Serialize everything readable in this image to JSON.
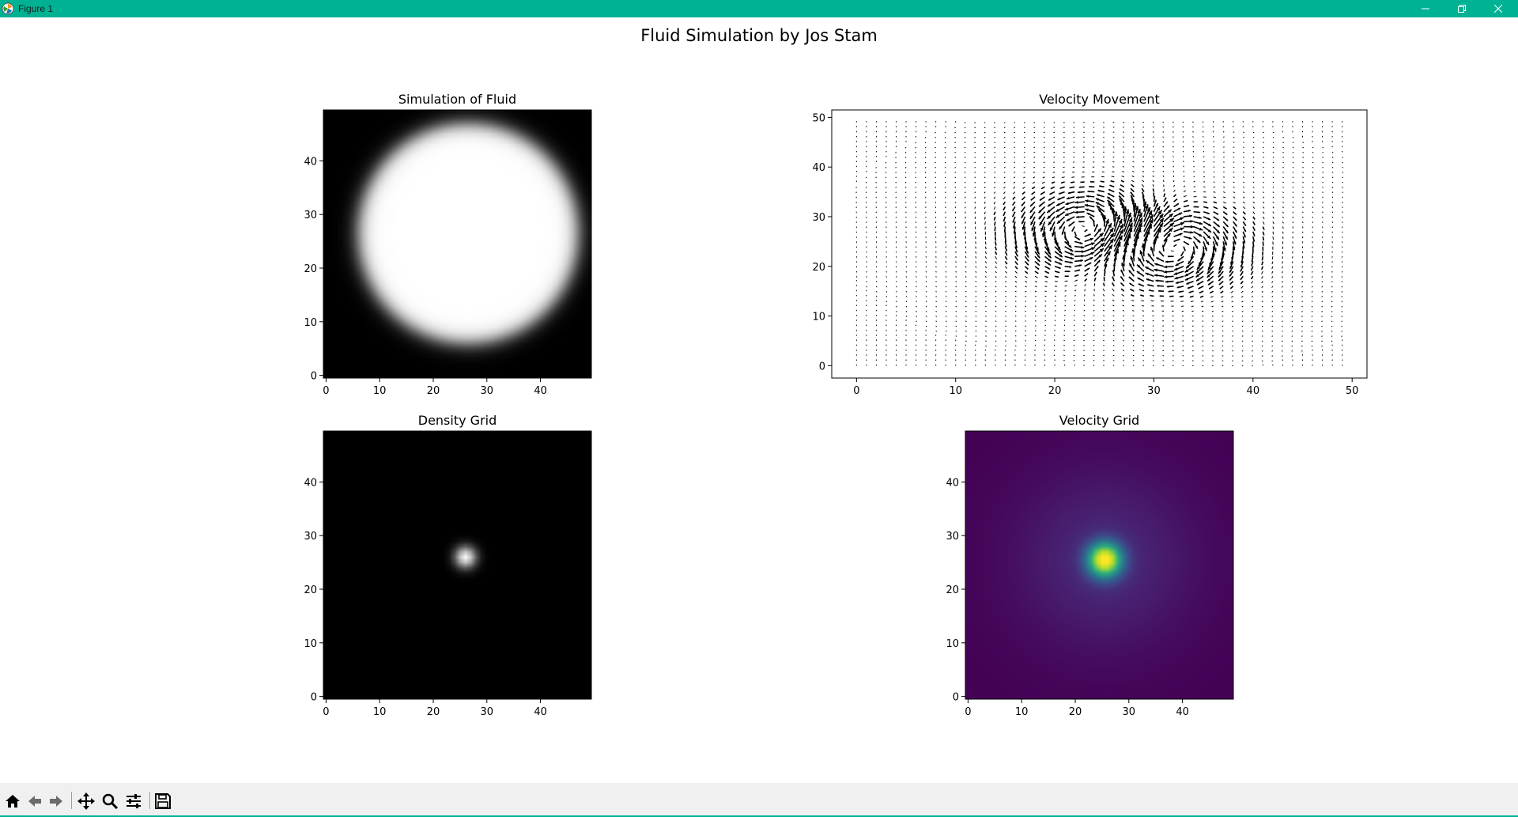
{
  "window": {
    "title": "Figure 1",
    "accent_color": "#00b294",
    "controls": [
      "minimize-icon",
      "restore-icon",
      "close-icon"
    ]
  },
  "figure": {
    "suptitle": "Fluid Simulation by Jos Stam"
  },
  "chart_data": [
    {
      "type": "heatmap",
      "title": "Simulation of Fluid",
      "colormap": "gray",
      "grid_size": [
        50,
        50
      ],
      "xlim": [
        -0.5,
        49.5
      ],
      "ylim": [
        -0.5,
        49.5
      ],
      "xticks": [
        0,
        10,
        20,
        30,
        40
      ],
      "yticks": [
        0,
        10,
        20,
        30,
        40
      ],
      "feature": {
        "shape": "ellipse",
        "center": [
          26.5,
          26.5
        ],
        "radius_x": 20.5,
        "radius_y": 20.5,
        "value_inside": 1.0,
        "value_outside": 0.0
      }
    },
    {
      "type": "quiver",
      "title": "Velocity Movement",
      "xlim": [
        -2.5,
        51.5
      ],
      "ylim": [
        -2.5,
        51.5
      ],
      "xticks": [
        0,
        10,
        20,
        30,
        40,
        50
      ],
      "yticks": [
        0,
        10,
        20,
        30,
        40,
        50
      ],
      "grid_spacing": 1,
      "vortex_centers": [
        [
          24,
          27
        ],
        [
          31,
          24
        ]
      ],
      "color": "#000000"
    },
    {
      "type": "heatmap",
      "title": "Density Grid",
      "colormap": "gray",
      "grid_size": [
        50,
        50
      ],
      "xlim": [
        -0.5,
        49.5
      ],
      "ylim": [
        -0.5,
        49.5
      ],
      "xticks": [
        0,
        10,
        20,
        30,
        40
      ],
      "yticks": [
        0,
        10,
        20,
        30,
        40
      ],
      "feature": {
        "shape": "gaussian",
        "center": [
          26,
          26
        ],
        "sigma": 1.4,
        "peak": 1.0
      }
    },
    {
      "type": "heatmap",
      "title": "Velocity Grid",
      "colormap": "viridis",
      "grid_size": [
        50,
        50
      ],
      "xlim": [
        -0.5,
        49.5
      ],
      "ylim": [
        -0.5,
        49.5
      ],
      "xticks": [
        0,
        10,
        20,
        30,
        40
      ],
      "yticks": [
        0,
        10,
        20,
        30,
        40
      ],
      "feature": {
        "shape": "gaussian",
        "center": [
          25.5,
          25.5
        ],
        "sigma": 2.2,
        "peak": 1.0,
        "halo": 0.12
      }
    }
  ],
  "toolbar": {
    "items": [
      {
        "name": "home",
        "icon": "home-icon"
      },
      {
        "name": "back",
        "icon": "arrow-left-icon"
      },
      {
        "name": "forward",
        "icon": "arrow-right-icon"
      },
      {
        "name": "pan",
        "icon": "move-icon"
      },
      {
        "name": "zoom",
        "icon": "zoom-icon"
      },
      {
        "name": "configure",
        "icon": "sliders-icon"
      },
      {
        "name": "save",
        "icon": "save-icon"
      }
    ]
  }
}
